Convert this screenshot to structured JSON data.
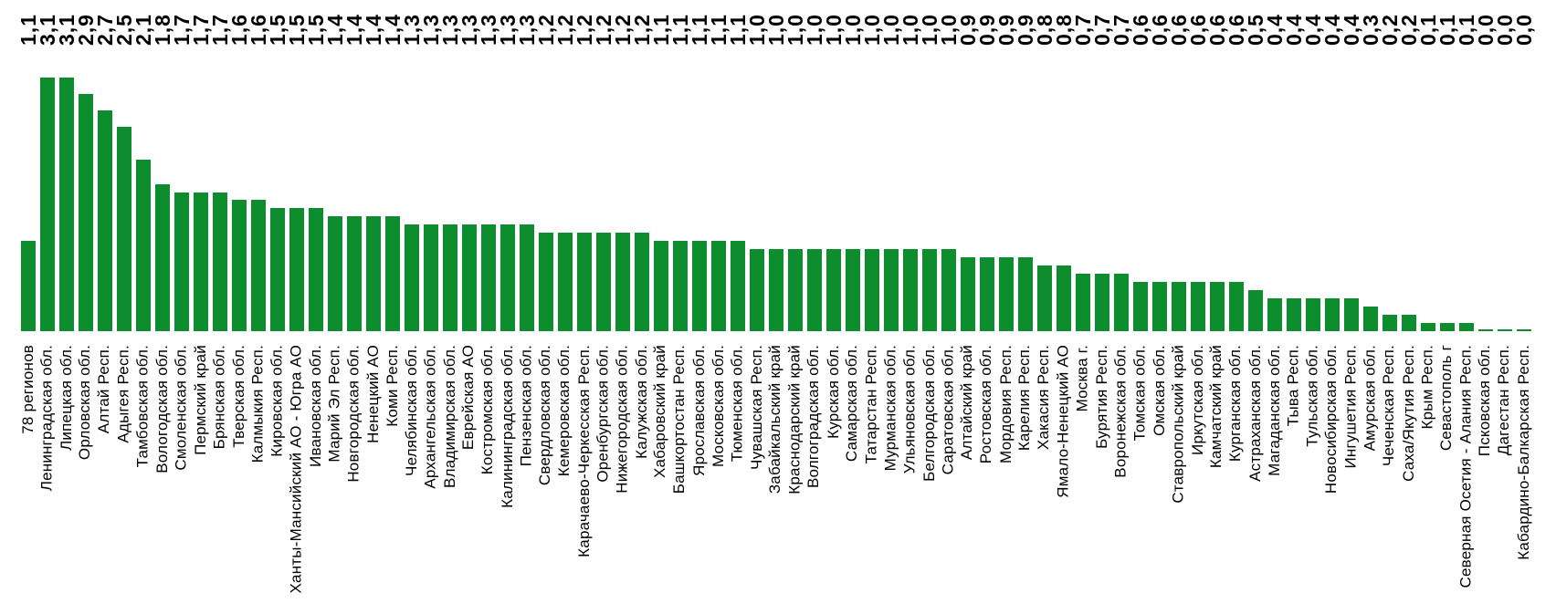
{
  "page": {
    "background_color": "#ffffff",
    "text_color": "#000000"
  },
  "chart_data": {
    "type": "bar",
    "title": "",
    "xlabel": "",
    "ylabel": "",
    "legend": null,
    "grid": false,
    "orientation": "vertical",
    "value_labels_position": "top-row",
    "label_rotation_degrees": 90,
    "bar_color": "#0d8d2d",
    "ylim": [
      0,
      3.1
    ],
    "categories": [
      "78 регионов",
      "Ленинградская обл.",
      "Липецкая обл.",
      "Орловская обл.",
      "Алтай Респ.",
      "Адыгея Респ.",
      "Тамбовская обл.",
      "Вологодская обл.",
      "Смоленская обл.",
      "Пермский край",
      "Брянская обл.",
      "Тверская обл.",
      "Калмыкия Респ.",
      "Кировская обл.",
      "Ханты-Мансийский АО - Югра АО",
      "Ивановская обл.",
      "Марий Эл Респ.",
      "Новгородская обл.",
      "Ненецкий АО",
      "Коми Респ.",
      "Челябинская обл.",
      "Архангельская обл.",
      "Владимирская обл.",
      "Еврейская АО",
      "Костромская обл.",
      "Калининградская обл.",
      "Пензенская обл.",
      "Свердловская обл.",
      "Кемеровская обл.",
      "Карачаево-Черкесская Респ.",
      "Оренбургская обл.",
      "Нижегородская обл.",
      "Калужская обл.",
      "Хабаровский край",
      "Башкортостан Респ.",
      "Ярославская обл.",
      "Московская обл.",
      "Тюменская обл.",
      "Чувашская Респ.",
      "Забайкальский край",
      "Краснодарский край",
      "Волгоградская обл.",
      "Курская обл.",
      "Самарская обл.",
      "Татарстан Респ.",
      "Мурманская обл.",
      "Ульяновская обл.",
      "Белгородская обл.",
      "Саратовская обл.",
      "Алтайский край",
      "Ростовская обл.",
      "Мордовия Респ.",
      "Карелия Респ.",
      "Хакасия Респ.",
      "Ямало-Ненецкий АО",
      "Москва г.",
      "Бурятия Респ.",
      "Воронежская обл.",
      "Томская обл.",
      "Омская обл.",
      "Ставропольский край",
      "Иркутская обл.",
      "Камчатский край",
      "Курганская обл.",
      "Астраханская обл.",
      "Магаданская обл.",
      "Тыва Респ.",
      "Тульская обл.",
      "Новосибирская обл.",
      "Ингушетия Респ.",
      "Амурская обл.",
      "Чеченская Респ.",
      "Саха/Якутия Респ.",
      "Крым Респ.",
      "Севастополь г",
      "Северная Осетия - Алания Респ.",
      "Псковская обл.",
      "Дагестан Респ.",
      "Кабардино-Балкарская Респ."
    ],
    "values": [
      1.1,
      3.1,
      3.1,
      2.9,
      2.7,
      2.5,
      2.1,
      1.8,
      1.7,
      1.7,
      1.7,
      1.6,
      1.6,
      1.5,
      1.5,
      1.5,
      1.4,
      1.4,
      1.4,
      1.4,
      1.3,
      1.3,
      1.3,
      1.3,
      1.3,
      1.3,
      1.3,
      1.2,
      1.2,
      1.2,
      1.2,
      1.2,
      1.2,
      1.1,
      1.1,
      1.1,
      1.1,
      1.1,
      1.0,
      1.0,
      1.0,
      1.0,
      1.0,
      1.0,
      1.0,
      1.0,
      1.0,
      1.0,
      1.0,
      0.9,
      0.9,
      0.9,
      0.9,
      0.8,
      0.8,
      0.7,
      0.7,
      0.7,
      0.6,
      0.6,
      0.6,
      0.6,
      0.6,
      0.6,
      0.5,
      0.4,
      0.4,
      0.4,
      0.4,
      0.4,
      0.3,
      0.2,
      0.2,
      0.1,
      0.1,
      0.1,
      0.0,
      0.0,
      0.0
    ],
    "value_labels": [
      "1,1",
      "3,1",
      "3,1",
      "2,9",
      "2,7",
      "2,5",
      "2,1",
      "1,8",
      "1,7",
      "1,7",
      "1,7",
      "1,6",
      "1,6",
      "1,5",
      "1,5",
      "1,5",
      "1,4",
      "1,4",
      "1,4",
      "1,4",
      "1,3",
      "1,3",
      "1,3",
      "1,3",
      "1,3",
      "1,3",
      "1,3",
      "1,2",
      "1,2",
      "1,2",
      "1,2",
      "1,2",
      "1,2",
      "1,1",
      "1,1",
      "1,1",
      "1,1",
      "1,1",
      "1,0",
      "1,0",
      "1,0",
      "1,0",
      "1,0",
      "1,0",
      "1,0",
      "1,0",
      "1,0",
      "1,0",
      "1,0",
      "0,9",
      "0,9",
      "0,9",
      "0,9",
      "0,8",
      "0,8",
      "0,7",
      "0,7",
      "0,7",
      "0,6",
      "0,6",
      "0,6",
      "0,6",
      "0,6",
      "0,6",
      "0,5",
      "0,4",
      "0,4",
      "0,4",
      "0,4",
      "0,4",
      "0,3",
      "0,2",
      "0,2",
      "0,1",
      "0,1",
      "0,1",
      "0,0",
      "0,0",
      "0,0"
    ]
  }
}
